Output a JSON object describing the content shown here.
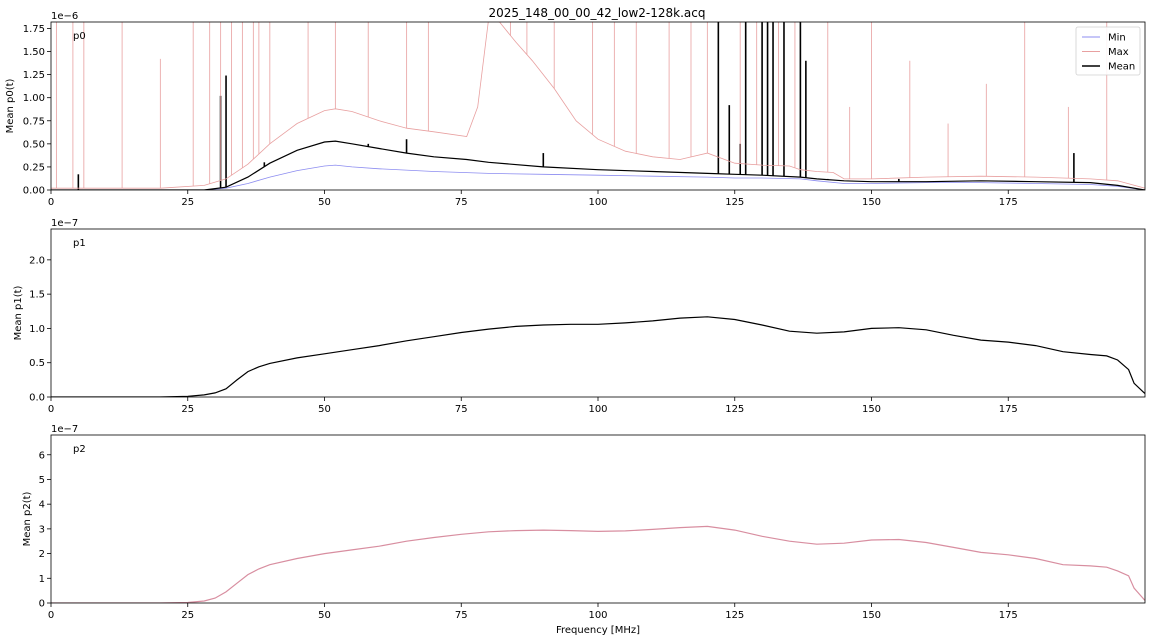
{
  "title": "2025_148_00_00_42_low2-128k.acq",
  "chart_data": [
    {
      "type": "line",
      "panel_label": "p0",
      "ylabel": "Mean p0(t)",
      "xlabel": "",
      "y_multiplier": "1e−6",
      "xlim": [
        0,
        200
      ],
      "ylim": [
        0,
        1.82
      ],
      "xticks": [
        0,
        25,
        50,
        75,
        100,
        125,
        150,
        175
      ],
      "yticks": [
        0.0,
        0.25,
        0.5,
        0.75,
        1.0,
        1.25,
        1.5,
        1.75
      ],
      "ytick_labels": [
        "0.00",
        "0.25",
        "0.50",
        "0.75",
        "1.00",
        "1.25",
        "1.50",
        "1.75"
      ],
      "grid": false,
      "legend_position": "top-right",
      "legend": [
        "Min",
        "Max",
        "Mean"
      ],
      "series": [
        {
          "name": "Min",
          "color": "#8c8cf0",
          "x": [
            0,
            20,
            28,
            32,
            36,
            40,
            45,
            50,
            52,
            55,
            60,
            70,
            80,
            90,
            100,
            110,
            120,
            125,
            130,
            137,
            140,
            145,
            150,
            160,
            170,
            180,
            190,
            195,
            200
          ],
          "y": [
            0,
            0,
            0.0,
            0.02,
            0.07,
            0.14,
            0.21,
            0.26,
            0.27,
            0.25,
            0.23,
            0.2,
            0.18,
            0.17,
            0.16,
            0.15,
            0.14,
            0.13,
            0.13,
            0.12,
            0.1,
            0.07,
            0.07,
            0.08,
            0.08,
            0.07,
            0.06,
            0.04,
            0.0
          ]
        },
        {
          "name": "Max",
          "color": "#e8a0a0",
          "x": [
            0,
            20,
            28,
            32,
            36,
            40,
            45,
            50,
            52,
            55,
            60,
            65,
            70,
            76,
            78,
            80,
            82,
            85,
            88,
            92,
            96,
            100,
            105,
            110,
            115,
            120,
            125,
            130,
            135,
            137,
            140,
            143,
            145,
            150,
            160,
            170,
            180,
            190,
            195,
            200
          ],
          "y": [
            0.02,
            0.02,
            0.05,
            0.12,
            0.28,
            0.5,
            0.72,
            0.86,
            0.88,
            0.85,
            0.75,
            0.67,
            0.63,
            0.58,
            0.9,
            1.85,
            1.82,
            1.6,
            1.4,
            1.1,
            0.75,
            0.55,
            0.42,
            0.36,
            0.33,
            0.4,
            0.29,
            0.27,
            0.26,
            0.22,
            0.2,
            0.19,
            0.12,
            0.12,
            0.14,
            0.15,
            0.14,
            0.12,
            0.1,
            0.02
          ]
        },
        {
          "name": "Mean",
          "color": "#000000",
          "x": [
            0,
            20,
            28,
            32,
            36,
            40,
            45,
            50,
            52,
            55,
            60,
            65,
            70,
            76,
            80,
            90,
            100,
            110,
            120,
            125,
            130,
            137,
            140,
            145,
            150,
            160,
            170,
            180,
            190,
            195,
            200
          ],
          "y": [
            0,
            0,
            0.0,
            0.03,
            0.14,
            0.29,
            0.43,
            0.52,
            0.53,
            0.5,
            0.45,
            0.4,
            0.36,
            0.33,
            0.3,
            0.25,
            0.22,
            0.2,
            0.18,
            0.17,
            0.16,
            0.14,
            0.12,
            0.1,
            0.09,
            0.09,
            0.1,
            0.09,
            0.08,
            0.05,
            0.0
          ]
        }
      ],
      "spikes": [
        {
          "series": "Mean",
          "x": [
            5,
            31,
            32,
            39,
            58,
            65,
            90,
            122,
            124,
            126,
            127,
            130,
            131,
            132,
            134,
            137,
            138,
            142,
            155,
            187
          ],
          "y": [
            0.17,
            1.02,
            1.24,
            0.3,
            0.5,
            0.55,
            0.4,
            1.85,
            0.92,
            0.5,
            1.85,
            1.85,
            1.85,
            1.85,
            1.85,
            1.85,
            1.4,
            0.12,
            0.12,
            0.4
          ]
        },
        {
          "series": "Max",
          "x": [
            1,
            4,
            6,
            13,
            20,
            26,
            29,
            31,
            33,
            35,
            37,
            38,
            40,
            47,
            52,
            58,
            65,
            69,
            84,
            87,
            92,
            99,
            103,
            107,
            113,
            117,
            120,
            126,
            129,
            133,
            136,
            142,
            146,
            150,
            157,
            164,
            171,
            178,
            186,
            193
          ],
          "y": [
            1.85,
            1.85,
            1.85,
            1.85,
            1.42,
            1.85,
            1.85,
            1.85,
            1.85,
            1.85,
            1.85,
            1.85,
            1.85,
            1.85,
            1.85,
            1.85,
            1.85,
            1.85,
            1.85,
            1.85,
            1.85,
            1.85,
            1.85,
            1.85,
            1.85,
            1.85,
            1.85,
            1.85,
            1.85,
            1.85,
            1.85,
            1.85,
            0.9,
            1.85,
            1.4,
            0.72,
            1.15,
            1.85,
            0.9,
            1.85
          ]
        }
      ]
    },
    {
      "type": "line",
      "panel_label": "p1",
      "ylabel": "Mean p1(t)",
      "xlabel": "",
      "y_multiplier": "1e−7",
      "xlim": [
        0,
        200
      ],
      "ylim": [
        0,
        2.45
      ],
      "xticks": [
        0,
        25,
        50,
        75,
        100,
        125,
        150,
        175
      ],
      "yticks": [
        0.0,
        0.5,
        1.0,
        1.5,
        2.0
      ],
      "ytick_labels": [
        "0.0",
        "0.5",
        "1.0",
        "1.5",
        "2.0"
      ],
      "grid": false,
      "series": [
        {
          "color": "#000000",
          "x": [
            0,
            20,
            25,
            28,
            30,
            32,
            34,
            36,
            38,
            40,
            45,
            50,
            55,
            60,
            65,
            70,
            75,
            80,
            85,
            90,
            95,
            100,
            105,
            110,
            115,
            120,
            125,
            130,
            135,
            140,
            145,
            150,
            155,
            160,
            165,
            170,
            175,
            180,
            185,
            190,
            193,
            195,
            197,
            198,
            200
          ],
          "y": [
            0,
            0.0,
            0.01,
            0.03,
            0.06,
            0.12,
            0.25,
            0.37,
            0.44,
            0.49,
            0.57,
            0.63,
            0.69,
            0.75,
            0.82,
            0.88,
            0.94,
            0.99,
            1.03,
            1.05,
            1.06,
            1.06,
            1.08,
            1.11,
            1.15,
            1.17,
            1.13,
            1.05,
            0.96,
            0.93,
            0.95,
            1.0,
            1.01,
            0.98,
            0.9,
            0.83,
            0.8,
            0.75,
            0.66,
            0.62,
            0.6,
            0.54,
            0.4,
            0.2,
            0.05
          ]
        }
      ]
    },
    {
      "type": "line",
      "panel_label": "p2",
      "ylabel": "Mean p2(t)",
      "xlabel": "Frequency [MHz]",
      "y_multiplier": "1e−7",
      "xlim": [
        0,
        200
      ],
      "ylim": [
        0,
        6.8
      ],
      "xticks": [
        0,
        25,
        50,
        75,
        100,
        125,
        150,
        175
      ],
      "yticks": [
        0,
        1,
        2,
        3,
        4,
        5,
        6
      ],
      "ytick_labels": [
        "0",
        "1",
        "2",
        "3",
        "4",
        "5",
        "6"
      ],
      "grid": false,
      "series": [
        {
          "color": "#d88ea0",
          "x": [
            0,
            20,
            25,
            28,
            30,
            32,
            34,
            36,
            38,
            40,
            45,
            50,
            55,
            60,
            65,
            70,
            75,
            80,
            85,
            90,
            95,
            100,
            105,
            110,
            115,
            120,
            125,
            130,
            135,
            140,
            145,
            150,
            155,
            160,
            165,
            170,
            175,
            180,
            185,
            190,
            193,
            195,
            197,
            198,
            200
          ],
          "y": [
            0,
            0.0,
            0.02,
            0.08,
            0.2,
            0.45,
            0.8,
            1.15,
            1.38,
            1.55,
            1.8,
            2.0,
            2.15,
            2.3,
            2.5,
            2.65,
            2.78,
            2.88,
            2.93,
            2.95,
            2.93,
            2.9,
            2.92,
            2.98,
            3.05,
            3.1,
            2.95,
            2.7,
            2.5,
            2.38,
            2.42,
            2.55,
            2.57,
            2.45,
            2.25,
            2.05,
            1.95,
            1.8,
            1.55,
            1.5,
            1.45,
            1.3,
            1.1,
            0.6,
            0.1
          ]
        }
      ]
    }
  ]
}
